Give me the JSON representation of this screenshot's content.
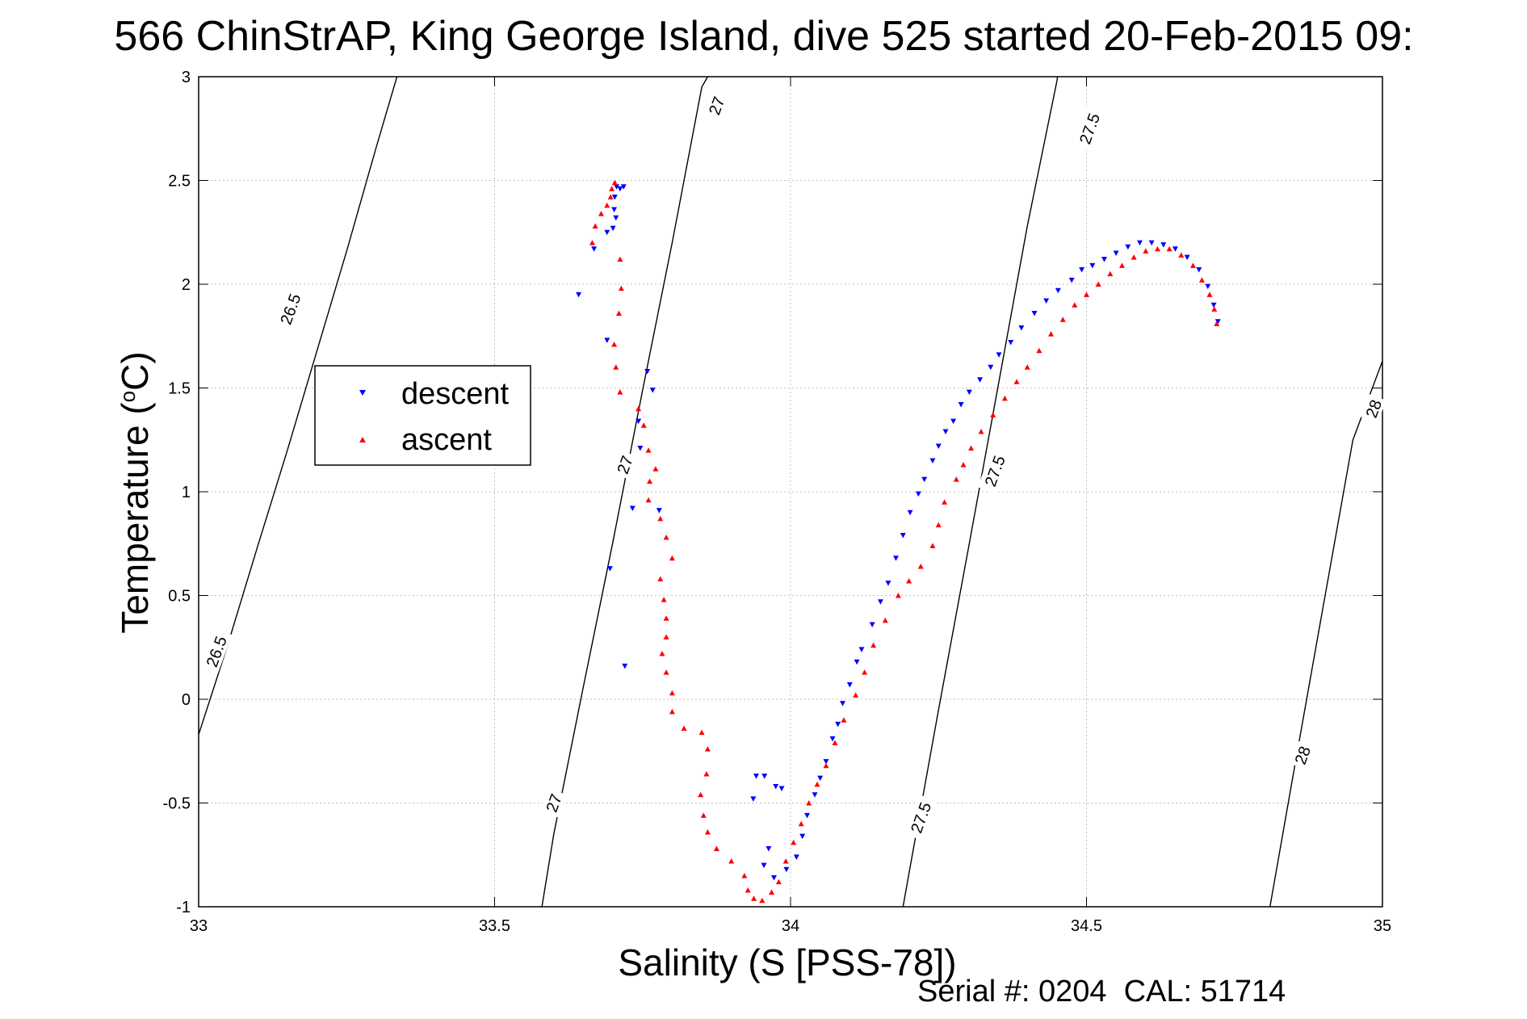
{
  "chart_data": {
    "type": "scatter",
    "title": "566 ChinStrAP, King George Island, dive 525 started 20-Feb-2015 09:",
    "xlabel": "Salinity (S [PSS-78])",
    "ylabel_main": "Temperature (",
    "ylabel_deg": "o",
    "ylabel_tail": "C)",
    "xlim": [
      33,
      35
    ],
    "ylim": [
      -1,
      3
    ],
    "xticks": [
      33,
      33.5,
      34,
      34.5,
      35
    ],
    "xtick_labels": [
      "33",
      "33.5",
      "34",
      "34.5",
      "35"
    ],
    "yticks": [
      -1,
      -0.5,
      0,
      0.5,
      1,
      1.5,
      2,
      2.5,
      3
    ],
    "ytick_labels": [
      "-1",
      "-0.5",
      "0",
      "0.5",
      "1",
      "1.5",
      "2",
      "2.5",
      "3"
    ],
    "grid": true,
    "legend_position": "left-middle",
    "footer": "Serial #: 0204  CAL: 51714",
    "colors": {
      "descent": "#0000ff",
      "ascent": "#ff0000",
      "contour": "#000000",
      "grid": "#bfbfbf"
    },
    "density_contours": [
      {
        "label": "26.5",
        "points": [
          [
            33.0,
            -0.17
          ],
          [
            33.05,
            0.27
          ],
          [
            33.1,
            0.74
          ],
          [
            33.15,
            1.2
          ],
          [
            33.2,
            1.68
          ],
          [
            33.25,
            2.16
          ],
          [
            33.3,
            2.66
          ],
          [
            33.335,
            3.0
          ]
        ],
        "label_positions": [
          [
            33.155,
            1.88
          ],
          [
            33.03,
            0.23
          ]
        ]
      },
      {
        "label": "27",
        "points": [
          [
            33.58,
            -1.0
          ],
          [
            33.6,
            -0.65
          ],
          [
            33.65,
            0.06
          ],
          [
            33.7,
            0.76
          ],
          [
            33.75,
            1.49
          ],
          [
            33.8,
            2.2
          ],
          [
            33.85,
            2.95
          ],
          [
            33.86,
            3.0
          ]
        ],
        "label_positions": [
          [
            33.72,
            1.13
          ],
          [
            33.6,
            -0.5
          ],
          [
            33.875,
            2.86
          ]
        ]
      },
      {
        "label": "27.5",
        "points": [
          [
            34.19,
            -1.0
          ],
          [
            34.2,
            -0.84
          ],
          [
            34.25,
            -0.05
          ],
          [
            34.3,
            0.72
          ],
          [
            34.35,
            1.5
          ],
          [
            34.4,
            2.28
          ],
          [
            34.45,
            2.98
          ],
          [
            34.451,
            3.0
          ]
        ],
        "label_positions": [
          [
            34.345,
            1.1
          ],
          [
            34.22,
            -0.57
          ],
          [
            34.505,
            2.75
          ]
        ]
      },
      {
        "label": "28",
        "points": [
          [
            34.81,
            -1.0
          ],
          [
            34.85,
            -0.35
          ],
          [
            34.9,
            0.45
          ],
          [
            34.95,
            1.25
          ],
          [
            35.0,
            1.63
          ]
        ],
        "label_positions": [
          [
            34.865,
            -0.27
          ],
          [
            34.985,
            1.4
          ]
        ]
      }
    ],
    "series": [
      {
        "name": "descent",
        "marker": "triangle-down",
        "points": [
          [
            33.718,
            2.47
          ],
          [
            33.712,
            2.46
          ],
          [
            33.706,
            2.47
          ],
          [
            33.703,
            2.42
          ],
          [
            33.702,
            2.36
          ],
          [
            33.705,
            2.32
          ],
          [
            33.7,
            2.27
          ],
          [
            33.69,
            2.25
          ],
          [
            33.668,
            2.17
          ],
          [
            33.642,
            1.95
          ],
          [
            33.69,
            1.73
          ],
          [
            33.758,
            1.58
          ],
          [
            33.767,
            1.49
          ],
          [
            33.743,
            1.34
          ],
          [
            33.746,
            1.21
          ],
          [
            33.778,
            0.91
          ],
          [
            33.733,
            0.92
          ],
          [
            33.695,
            0.63
          ],
          [
            33.72,
            0.16
          ],
          [
            33.937,
            -0.48
          ],
          [
            33.942,
            -0.37
          ],
          [
            33.956,
            -0.37
          ],
          [
            33.975,
            -0.42
          ],
          [
            33.985,
            -0.43
          ],
          [
            33.963,
            -0.72
          ],
          [
            33.955,
            -0.8
          ],
          [
            33.972,
            -0.86
          ],
          [
            33.993,
            -0.82
          ],
          [
            34.01,
            -0.76
          ],
          [
            34.02,
            -0.66
          ],
          [
            34.028,
            -0.56
          ],
          [
            34.041,
            -0.46
          ],
          [
            34.05,
            -0.38
          ],
          [
            34.06,
            -0.3
          ],
          [
            34.071,
            -0.19
          ],
          [
            34.08,
            -0.12
          ],
          [
            34.088,
            -0.02
          ],
          [
            34.1,
            0.07
          ],
          [
            34.112,
            0.18
          ],
          [
            34.12,
            0.24
          ],
          [
            34.138,
            0.36
          ],
          [
            34.152,
            0.47
          ],
          [
            34.165,
            0.56
          ],
          [
            34.178,
            0.68
          ],
          [
            34.19,
            0.79
          ],
          [
            34.202,
            0.9
          ],
          [
            34.216,
            0.99
          ],
          [
            34.226,
            1.06
          ],
          [
            34.24,
            1.15
          ],
          [
            34.25,
            1.22
          ],
          [
            34.262,
            1.29
          ],
          [
            34.275,
            1.34
          ],
          [
            34.288,
            1.42
          ],
          [
            34.302,
            1.48
          ],
          [
            34.32,
            1.54
          ],
          [
            34.338,
            1.6
          ],
          [
            34.352,
            1.66
          ],
          [
            34.372,
            1.72
          ],
          [
            34.39,
            1.79
          ],
          [
            34.412,
            1.86
          ],
          [
            34.432,
            1.92
          ],
          [
            34.452,
            1.97
          ],
          [
            34.475,
            2.02
          ],
          [
            34.492,
            2.07
          ],
          [
            34.51,
            2.09
          ],
          [
            34.53,
            2.12
          ],
          [
            34.55,
            2.15
          ],
          [
            34.57,
            2.18
          ],
          [
            34.59,
            2.2
          ],
          [
            34.61,
            2.2
          ],
          [
            34.63,
            2.19
          ],
          [
            34.65,
            2.17
          ],
          [
            34.67,
            2.13
          ],
          [
            34.69,
            2.07
          ],
          [
            34.705,
            1.99
          ],
          [
            34.715,
            1.9
          ],
          [
            34.722,
            1.82
          ]
        ]
      },
      {
        "name": "ascent",
        "marker": "triangle-up",
        "points": [
          [
            33.703,
            2.49
          ],
          [
            33.698,
            2.46
          ],
          [
            33.696,
            2.42
          ],
          [
            33.69,
            2.38
          ],
          [
            33.68,
            2.34
          ],
          [
            33.67,
            2.28
          ],
          [
            33.665,
            2.2
          ],
          [
            33.712,
            2.12
          ],
          [
            33.714,
            1.98
          ],
          [
            33.71,
            1.86
          ],
          [
            33.702,
            1.71
          ],
          [
            33.705,
            1.6
          ],
          [
            33.712,
            1.48
          ],
          [
            33.743,
            1.4
          ],
          [
            33.752,
            1.32
          ],
          [
            33.76,
            1.2
          ],
          [
            33.772,
            1.11
          ],
          [
            33.762,
            1.05
          ],
          [
            33.76,
            0.96
          ],
          [
            33.78,
            0.87
          ],
          [
            33.79,
            0.78
          ],
          [
            33.8,
            0.68
          ],
          [
            33.78,
            0.58
          ],
          [
            33.786,
            0.48
          ],
          [
            33.79,
            0.39
          ],
          [
            33.79,
            0.3
          ],
          [
            33.783,
            0.22
          ],
          [
            33.79,
            0.13
          ],
          [
            33.8,
            0.03
          ],
          [
            33.8,
            -0.06
          ],
          [
            33.82,
            -0.14
          ],
          [
            33.85,
            -0.16
          ],
          [
            33.86,
            -0.24
          ],
          [
            33.858,
            -0.36
          ],
          [
            33.848,
            -0.46
          ],
          [
            33.853,
            -0.56
          ],
          [
            33.86,
            -0.64
          ],
          [
            33.875,
            -0.72
          ],
          [
            33.9,
            -0.78
          ],
          [
            33.922,
            -0.85
          ],
          [
            33.928,
            -0.92
          ],
          [
            33.938,
            -0.96
          ],
          [
            33.952,
            -0.97
          ],
          [
            33.968,
            -0.93
          ],
          [
            33.98,
            -0.88
          ],
          [
            33.992,
            -0.78
          ],
          [
            34.005,
            -0.69
          ],
          [
            34.018,
            -0.6
          ],
          [
            34.031,
            -0.5
          ],
          [
            34.045,
            -0.41
          ],
          [
            34.06,
            -0.32
          ],
          [
            34.075,
            -0.21
          ],
          [
            34.09,
            -0.1
          ],
          [
            34.11,
            0.02
          ],
          [
            34.125,
            0.13
          ],
          [
            34.14,
            0.26
          ],
          [
            34.16,
            0.38
          ],
          [
            34.182,
            0.5
          ],
          [
            34.2,
            0.57
          ],
          [
            34.22,
            0.64
          ],
          [
            34.24,
            0.74
          ],
          [
            34.25,
            0.84
          ],
          [
            34.26,
            0.95
          ],
          [
            34.28,
            1.06
          ],
          [
            34.292,
            1.13
          ],
          [
            34.305,
            1.21
          ],
          [
            34.322,
            1.29
          ],
          [
            34.342,
            1.37
          ],
          [
            34.362,
            1.45
          ],
          [
            34.382,
            1.53
          ],
          [
            34.4,
            1.6
          ],
          [
            34.42,
            1.68
          ],
          [
            34.44,
            1.76
          ],
          [
            34.46,
            1.83
          ],
          [
            34.48,
            1.9
          ],
          [
            34.5,
            1.95
          ],
          [
            34.52,
            2.0
          ],
          [
            34.54,
            2.05
          ],
          [
            34.56,
            2.09
          ],
          [
            34.58,
            2.13
          ],
          [
            34.6,
            2.16
          ],
          [
            34.62,
            2.17
          ],
          [
            34.64,
            2.17
          ],
          [
            34.66,
            2.14
          ],
          [
            34.68,
            2.09
          ],
          [
            34.695,
            2.02
          ],
          [
            34.708,
            1.95
          ],
          [
            34.716,
            1.88
          ],
          [
            34.72,
            1.81
          ]
        ]
      }
    ]
  }
}
